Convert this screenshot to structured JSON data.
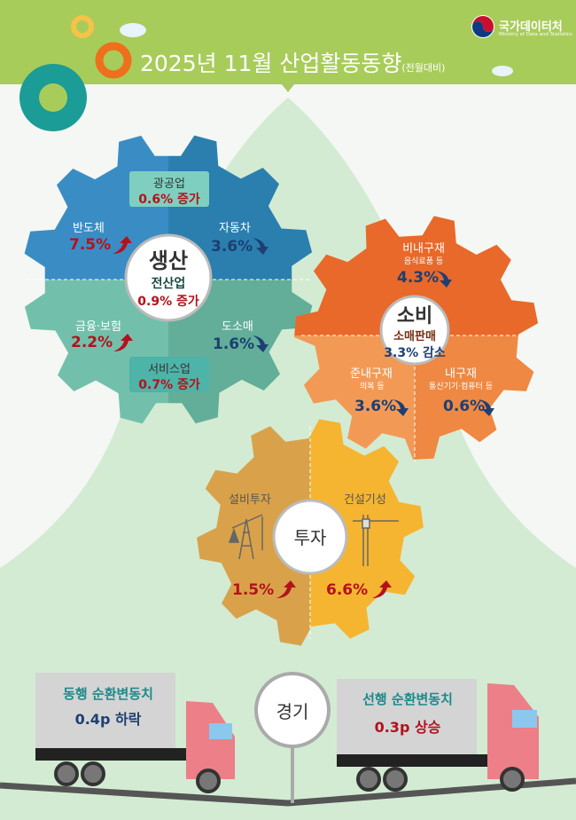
{
  "header": {
    "title": "2025년 11월 산업활동동향",
    "subtitle": "(전월대비)",
    "logo_name": "국가데이터처",
    "logo_en": "Ministry of Data and Statistics"
  },
  "production": {
    "title": "생산",
    "total_label": "전산업",
    "total_value": "0.9% 증가",
    "mining": {
      "label": "광공업",
      "value": "0.6% 증가"
    },
    "semiconductor": {
      "label": "반도체",
      "value": "7.5%",
      "direction": "up"
    },
    "auto": {
      "label": "자동차",
      "value": "3.6%",
      "direction": "down"
    },
    "finance": {
      "label": "금융·보험",
      "value": "2.2%",
      "direction": "up"
    },
    "wholesale": {
      "label": "도소매",
      "value": "1.6%",
      "direction": "down"
    },
    "service": {
      "label": "서비스업",
      "value": "0.7% 증가"
    }
  },
  "consumption": {
    "title": "소비",
    "total_label": "소매판매",
    "total_value": "3.3% 감소",
    "nondurable": {
      "label": "비내구재",
      "note": "음식료품 등",
      "value": "4.3%",
      "direction": "down"
    },
    "semidurable": {
      "label": "준내구재",
      "note": "의복 등",
      "value": "3.6%",
      "direction": "down"
    },
    "durable": {
      "label": "내구재",
      "note": "통신기기·컴퓨터 등",
      "value": "0.6%",
      "direction": "down"
    }
  },
  "investment": {
    "title": "투자",
    "facility": {
      "label": "설비투자",
      "value": "1.5%",
      "direction": "up"
    },
    "construction": {
      "label": "건설기성",
      "value": "6.6%",
      "direction": "up"
    }
  },
  "economy": {
    "title": "경기",
    "coincident": {
      "label": "동행 순환변동치",
      "value": "0.4p 하락"
    },
    "leading": {
      "label": "선행 순환변동치",
      "value": "0.3p 상승"
    }
  },
  "colors": {
    "header": "#a8cc5a",
    "up": "#b3121c",
    "down": "#1d3f73"
  }
}
